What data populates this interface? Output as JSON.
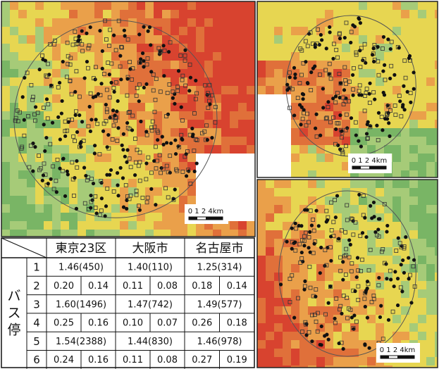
{
  "maps": [
    {
      "scale_label": "0 1 2  4km"
    },
    {
      "scale_label": "0 1 2  4km"
    },
    {
      "scale_label": "0 1 2  4km"
    }
  ],
  "table": {
    "headers": [
      "東京23区",
      "大阪市",
      "名古屋市"
    ],
    "group_label": "バス停",
    "rows": [
      {
        "label": "1",
        "cells": [
          "1.46(450)",
          "1.40(110)",
          "1.25(314)"
        ]
      },
      {
        "label": "2",
        "cells": [
          "0.20",
          "0.14",
          "0.11",
          "0.08",
          "0.18",
          "0.14"
        ]
      },
      {
        "label": "3",
        "cells": [
          "1.60(1496)",
          "1.47(742)",
          "1.49(577)"
        ]
      },
      {
        "label": "4",
        "cells": [
          "0.25",
          "0.16",
          "0.10",
          "0.07",
          "0.26",
          "0.18"
        ]
      },
      {
        "label": "5",
        "cells": [
          "1.54(2388)",
          "1.44(830)",
          "1.46(978)"
        ]
      },
      {
        "label": "6",
        "cells": [
          "0.24",
          "0.16",
          "0.11",
          "0.08",
          "0.27",
          "0.19"
        ]
      }
    ]
  }
}
